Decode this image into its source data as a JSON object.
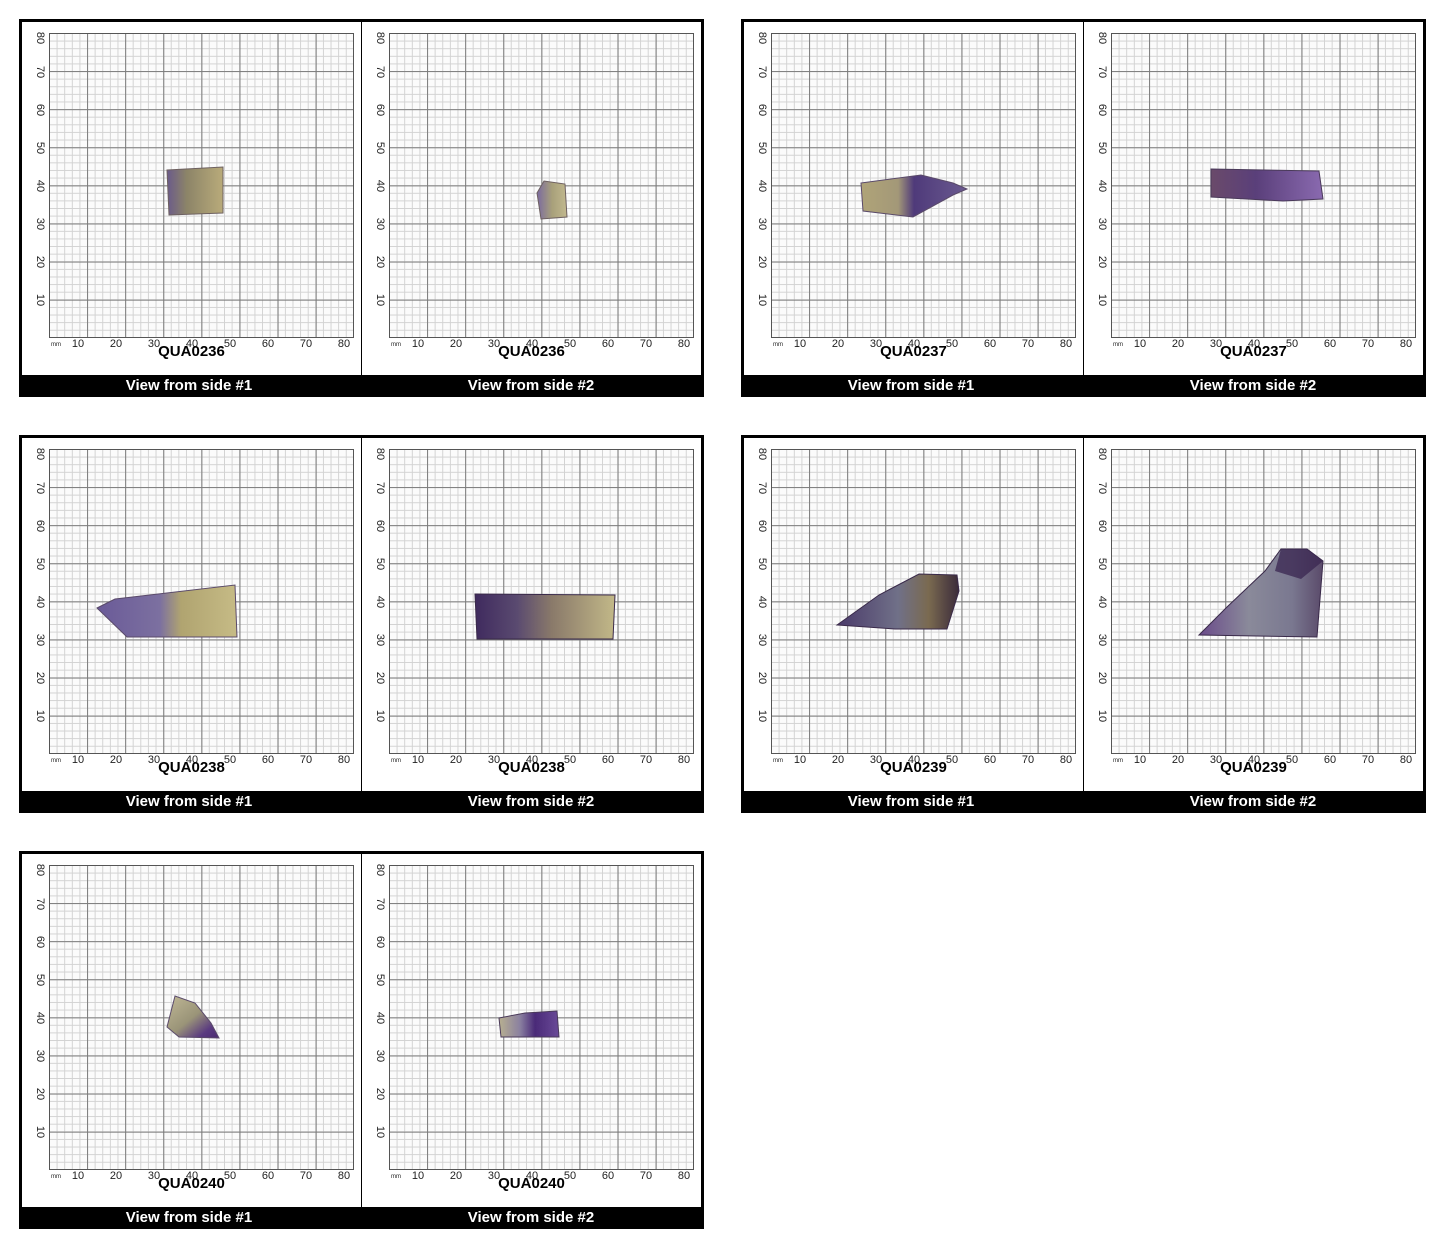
{
  "scale": {
    "unit_label": "mm",
    "x_ticks": [
      "10",
      "20",
      "30",
      "40",
      "50",
      "60",
      "70",
      "80"
    ],
    "y_ticks": [
      "10",
      "20",
      "30",
      "40",
      "50",
      "60",
      "70",
      "80"
    ]
  },
  "view_labels": {
    "side1": "View from side #1",
    "side2": "View from side #2"
  },
  "specimens": [
    {
      "id": "QUA0236"
    },
    {
      "id": "QUA0237"
    },
    {
      "id": "QUA0238"
    },
    {
      "id": "QUA0239"
    },
    {
      "id": "QUA0240"
    }
  ],
  "colors": {
    "frame": "#000000",
    "amethyst": "#5b3f86",
    "citrine": "#a8a070"
  }
}
